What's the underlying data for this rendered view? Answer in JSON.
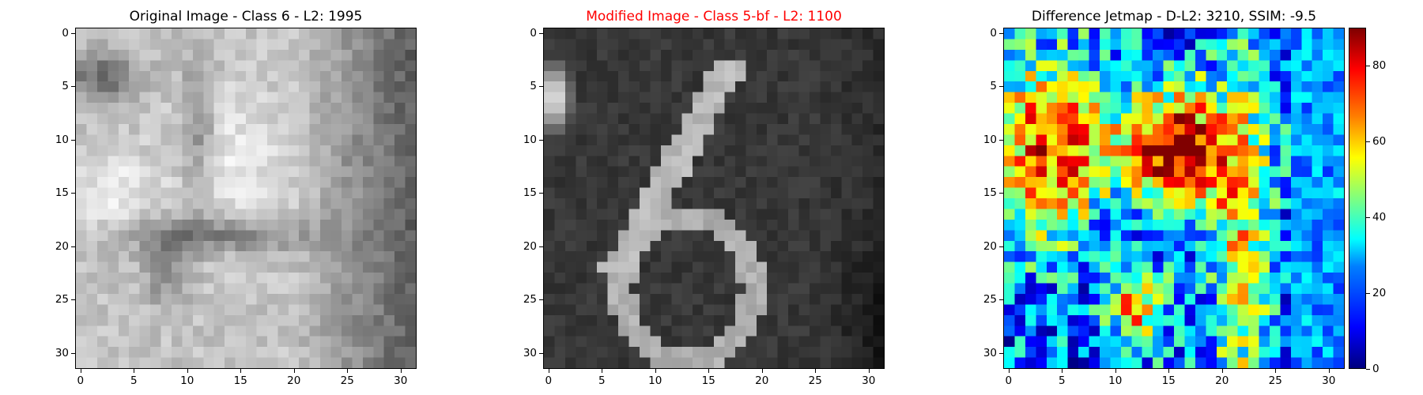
{
  "chart_data": [
    {
      "type": "heatmap",
      "colormap": "gray",
      "title": "Original Image - Class 6 - L2: 1995",
      "title_color": "#000000",
      "xlim": [
        0,
        31
      ],
      "ylim": [
        0,
        31
      ],
      "x_ticks": [
        "0",
        "5",
        "10",
        "15",
        "20",
        "25",
        "30"
      ],
      "y_ticks": [
        "0",
        "5",
        "10",
        "15",
        "20",
        "25",
        "30"
      ],
      "grid_size": [
        32,
        32
      ]
    },
    {
      "type": "heatmap",
      "colormap": "gray",
      "title": "Modified Image - Class 5-bf - L2: 1100",
      "title_color": "#ff0000",
      "xlim": [
        0,
        31
      ],
      "ylim": [
        0,
        31
      ],
      "x_ticks": [
        "0",
        "5",
        "10",
        "15",
        "20",
        "25",
        "30"
      ],
      "y_ticks": [
        "0",
        "5",
        "10",
        "15",
        "20",
        "25",
        "30"
      ],
      "grid_size": [
        32,
        32
      ]
    },
    {
      "type": "heatmap",
      "colormap": "jet",
      "title": "Difference Jetmap - D-L2: 3210, SSIM: -9.5",
      "title_color": "#000000",
      "xlim": [
        0,
        31
      ],
      "ylim": [
        0,
        31
      ],
      "x_ticks": [
        "0",
        "5",
        "10",
        "15",
        "20",
        "25",
        "30"
      ],
      "y_ticks": [
        "0",
        "5",
        "10",
        "15",
        "20",
        "25",
        "30"
      ],
      "grid_size": [
        32,
        32
      ],
      "colorbar": {
        "range": [
          0,
          90
        ],
        "ticks": [
          "0",
          "20",
          "40",
          "60",
          "80"
        ]
      }
    }
  ]
}
